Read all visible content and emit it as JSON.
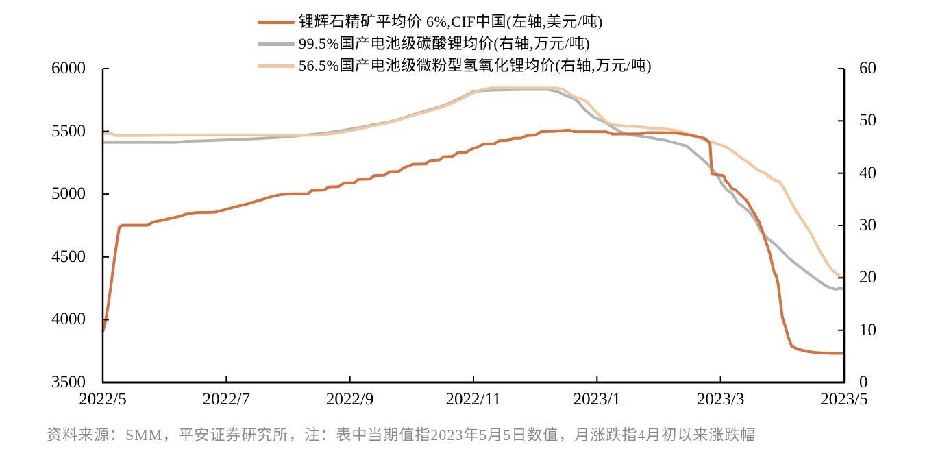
{
  "legend": {
    "items": [
      {
        "label": "锂辉石精矿平均价 6%,CIF中国(左轴,美元/吨)",
        "color": "#D4713C"
      },
      {
        "label": "99.5%国产电池级碳酸锂均价(右轴,万元/吨)",
        "color": "#B4B4B4"
      },
      {
        "label": "56.5%国产电池级微粉型氢氧化锂均价(右轴,万元/吨)",
        "color": "#F3C7A0"
      }
    ]
  },
  "footer": {
    "text": "资料来源：SMM，平安证券研究所，注：表中当期值指2023年5月5日数值，月涨跌指4月初以来涨跌幅"
  },
  "chart_data": {
    "type": "line",
    "grid": false,
    "legend_position": "top",
    "axis_color": "#000000",
    "x_axis": {
      "labels": [
        "2022/5",
        "2022/7",
        "2022/9",
        "2022/11",
        "2023/1",
        "2023/3",
        "2023/5"
      ],
      "label_months": [
        0,
        2,
        4,
        6,
        8,
        10,
        12
      ],
      "range_months": [
        0,
        12
      ]
    },
    "y_left": {
      "ticks": [
        3500,
        4000,
        4500,
        5000,
        5500,
        6000
      ],
      "range": [
        3500,
        6000
      ]
    },
    "y_right": {
      "ticks": [
        0,
        10,
        20,
        30,
        40,
        50,
        60
      ],
      "range": [
        0,
        60
      ]
    },
    "series": [
      {
        "id": "spodumene",
        "name": "锂辉石精矿平均价 6%,CIF中国(左轴,美元/吨)",
        "axis": "left",
        "color": "#D4713C",
        "z": 3,
        "points": [
          [
            0,
            3900
          ],
          [
            0.04,
            3980
          ],
          [
            0.08,
            4090
          ],
          [
            0.13,
            4260
          ],
          [
            0.18,
            4450
          ],
          [
            0.23,
            4620
          ],
          [
            0.27,
            4740
          ],
          [
            0.32,
            4752
          ],
          [
            0.72,
            4752
          ],
          [
            0.82,
            4778
          ],
          [
            0.95,
            4790
          ],
          [
            1.05,
            4802
          ],
          [
            1.2,
            4818
          ],
          [
            1.35,
            4840
          ],
          [
            1.5,
            4852
          ],
          [
            1.82,
            4856
          ],
          [
            1.95,
            4872
          ],
          [
            2.12,
            4896
          ],
          [
            2.32,
            4920
          ],
          [
            2.52,
            4948
          ],
          [
            2.72,
            4978
          ],
          [
            2.88,
            4996
          ],
          [
            3.05,
            5002
          ],
          [
            3.32,
            5002
          ],
          [
            3.38,
            5030
          ],
          [
            3.58,
            5032
          ],
          [
            3.66,
            5058
          ],
          [
            3.82,
            5060
          ],
          [
            3.9,
            5088
          ],
          [
            4.07,
            5090
          ],
          [
            4.14,
            5118
          ],
          [
            4.32,
            5120
          ],
          [
            4.4,
            5148
          ],
          [
            4.56,
            5150
          ],
          [
            4.64,
            5178
          ],
          [
            4.79,
            5180
          ],
          [
            4.87,
            5210
          ],
          [
            5.02,
            5238
          ],
          [
            5.22,
            5240
          ],
          [
            5.3,
            5268
          ],
          [
            5.44,
            5270
          ],
          [
            5.52,
            5298
          ],
          [
            5.66,
            5300
          ],
          [
            5.74,
            5328
          ],
          [
            5.87,
            5330
          ],
          [
            5.97,
            5358
          ],
          [
            6.07,
            5375
          ],
          [
            6.17,
            5400
          ],
          [
            6.34,
            5402
          ],
          [
            6.42,
            5426
          ],
          [
            6.56,
            5428
          ],
          [
            6.64,
            5444
          ],
          [
            6.77,
            5446
          ],
          [
            6.87,
            5466
          ],
          [
            7.0,
            5470
          ],
          [
            7.1,
            5498
          ],
          [
            7.3,
            5500
          ],
          [
            7.55,
            5510
          ],
          [
            7.62,
            5498
          ],
          [
            8.15,
            5496
          ],
          [
            8.25,
            5478
          ],
          [
            8.7,
            5480
          ],
          [
            8.82,
            5490
          ],
          [
            9.25,
            5488
          ],
          [
            9.45,
            5475
          ],
          [
            9.6,
            5460
          ],
          [
            9.74,
            5444
          ],
          [
            9.8,
            5420
          ],
          [
            9.83,
            5400
          ],
          [
            9.86,
            5158
          ],
          [
            10.0,
            5150
          ],
          [
            10.05,
            5145
          ],
          [
            10.08,
            5108
          ],
          [
            10.13,
            5082
          ],
          [
            10.18,
            5046
          ],
          [
            10.24,
            5036
          ],
          [
            10.3,
            5006
          ],
          [
            10.37,
            4974
          ],
          [
            10.43,
            4944
          ],
          [
            10.5,
            4880
          ],
          [
            10.56,
            4834
          ],
          [
            10.62,
            4782
          ],
          [
            10.67,
            4716
          ],
          [
            10.71,
            4652
          ],
          [
            10.75,
            4596
          ],
          [
            10.79,
            4540
          ],
          [
            10.83,
            4456
          ],
          [
            10.87,
            4372
          ],
          [
            10.9,
            4352
          ],
          [
            10.93,
            4290
          ],
          [
            10.96,
            4180
          ],
          [
            11.0,
            4022
          ],
          [
            11.05,
            3944
          ],
          [
            11.1,
            3856
          ],
          [
            11.15,
            3790
          ],
          [
            11.25,
            3766
          ],
          [
            11.4,
            3748
          ],
          [
            11.55,
            3738
          ],
          [
            11.8,
            3732
          ],
          [
            12.0,
            3732
          ]
        ]
      },
      {
        "id": "lithium-carbonate",
        "name": "99.5%国产电池级碳酸锂均价(右轴,万元/吨)",
        "axis": "right",
        "color": "#B4B4B4",
        "z": 1,
        "points": [
          [
            0,
            45.9
          ],
          [
            1.2,
            45.9
          ],
          [
            1.35,
            46.1
          ],
          [
            1.7,
            46.2
          ],
          [
            2.1,
            46.4
          ],
          [
            2.5,
            46.6
          ],
          [
            2.8,
            46.8
          ],
          [
            3.05,
            47.0
          ],
          [
            3.3,
            47.3
          ],
          [
            3.55,
            47.6
          ],
          [
            3.8,
            48.0
          ],
          [
            4.0,
            48.4
          ],
          [
            4.2,
            48.8
          ],
          [
            4.4,
            49.3
          ],
          [
            4.6,
            49.7
          ],
          [
            4.8,
            50.3
          ],
          [
            5.0,
            51.1
          ],
          [
            5.2,
            51.8
          ],
          [
            5.4,
            52.5
          ],
          [
            5.6,
            53.3
          ],
          [
            5.8,
            54.4
          ],
          [
            6.0,
            55.6
          ],
          [
            6.15,
            55.8
          ],
          [
            6.4,
            55.9
          ],
          [
            6.8,
            56.0
          ],
          [
            7.2,
            56.0
          ],
          [
            7.3,
            55.8
          ],
          [
            7.4,
            55.4
          ],
          [
            7.5,
            54.8
          ],
          [
            7.6,
            54.4
          ],
          [
            7.7,
            53.6
          ],
          [
            7.78,
            52.4
          ],
          [
            7.85,
            51.6
          ],
          [
            7.95,
            50.7
          ],
          [
            8.05,
            50.2
          ],
          [
            8.12,
            49.8
          ],
          [
            8.22,
            49.0
          ],
          [
            8.32,
            48.3
          ],
          [
            8.42,
            47.7
          ],
          [
            8.55,
            47.3
          ],
          [
            8.7,
            47.1
          ],
          [
            8.9,
            46.7
          ],
          [
            9.1,
            46.3
          ],
          [
            9.3,
            45.7
          ],
          [
            9.45,
            45.2
          ],
          [
            9.55,
            44.2
          ],
          [
            9.65,
            43.2
          ],
          [
            9.75,
            42.2
          ],
          [
            9.85,
            41.0
          ],
          [
            9.95,
            39.5
          ],
          [
            10.02,
            38.0
          ],
          [
            10.1,
            36.8
          ],
          [
            10.18,
            36.2
          ],
          [
            10.28,
            34.3
          ],
          [
            10.38,
            33.5
          ],
          [
            10.48,
            32.4
          ],
          [
            10.58,
            30.7
          ],
          [
            10.65,
            29.0
          ],
          [
            10.72,
            28.0
          ],
          [
            10.82,
            27.0
          ],
          [
            10.92,
            26.0
          ],
          [
            11.02,
            24.8
          ],
          [
            11.12,
            23.6
          ],
          [
            11.25,
            22.4
          ],
          [
            11.38,
            21.2
          ],
          [
            11.5,
            20.2
          ],
          [
            11.6,
            19.3
          ],
          [
            11.7,
            18.5
          ],
          [
            11.8,
            18.0
          ],
          [
            11.87,
            17.8
          ],
          [
            11.92,
            18.0
          ],
          [
            12.0,
            17.9
          ]
        ]
      },
      {
        "id": "lithium-hydroxide",
        "name": "56.5%国产电池级微粉型氢氧化锂均价(右轴,万元/吨)",
        "axis": "right",
        "color": "#F3C7A0",
        "z": 2,
        "points": [
          [
            0,
            47.6
          ],
          [
            0.14,
            47.6
          ],
          [
            0.2,
            47.2
          ],
          [
            0.6,
            47.2
          ],
          [
            1.2,
            47.3
          ],
          [
            2.4,
            47.3
          ],
          [
            3.1,
            47.2
          ],
          [
            3.5,
            47.3
          ],
          [
            3.75,
            47.6
          ],
          [
            4.0,
            48.1
          ],
          [
            4.2,
            48.6
          ],
          [
            4.4,
            49.1
          ],
          [
            4.6,
            49.6
          ],
          [
            4.8,
            50.2
          ],
          [
            5.0,
            51.0
          ],
          [
            5.2,
            51.6
          ],
          [
            5.4,
            52.3
          ],
          [
            5.6,
            53.1
          ],
          [
            5.8,
            54.2
          ],
          [
            6.0,
            55.4
          ],
          [
            6.15,
            56.0
          ],
          [
            6.3,
            56.3
          ],
          [
            6.8,
            56.3
          ],
          [
            7.35,
            56.3
          ],
          [
            7.45,
            56.0
          ],
          [
            7.55,
            55.2
          ],
          [
            7.65,
            54.5
          ],
          [
            7.75,
            54.2
          ],
          [
            7.85,
            53.5
          ],
          [
            7.92,
            52.5
          ],
          [
            8.0,
            51.5
          ],
          [
            8.08,
            50.6
          ],
          [
            8.18,
            49.6
          ],
          [
            8.28,
            49.2
          ],
          [
            8.45,
            49.0
          ],
          [
            8.65,
            48.9
          ],
          [
            8.9,
            48.6
          ],
          [
            9.15,
            48.4
          ],
          [
            9.32,
            48.1
          ],
          [
            9.45,
            47.6
          ],
          [
            9.6,
            47.0
          ],
          [
            9.75,
            46.3
          ],
          [
            9.9,
            45.8
          ],
          [
            10.0,
            45.4
          ],
          [
            10.12,
            44.8
          ],
          [
            10.22,
            44.0
          ],
          [
            10.35,
            42.8
          ],
          [
            10.48,
            41.8
          ],
          [
            10.6,
            40.6
          ],
          [
            10.72,
            40.0
          ],
          [
            10.85,
            38.8
          ],
          [
            10.95,
            38.4
          ],
          [
            11.02,
            37.2
          ],
          [
            11.12,
            35.0
          ],
          [
            11.22,
            32.8
          ],
          [
            11.34,
            30.7
          ],
          [
            11.46,
            28.5
          ],
          [
            11.56,
            26.2
          ],
          [
            11.64,
            24.5
          ],
          [
            11.72,
            22.9
          ],
          [
            11.8,
            21.5
          ],
          [
            11.87,
            20.9
          ],
          [
            11.94,
            20.2
          ],
          [
            12.0,
            20.0
          ]
        ]
      }
    ]
  }
}
